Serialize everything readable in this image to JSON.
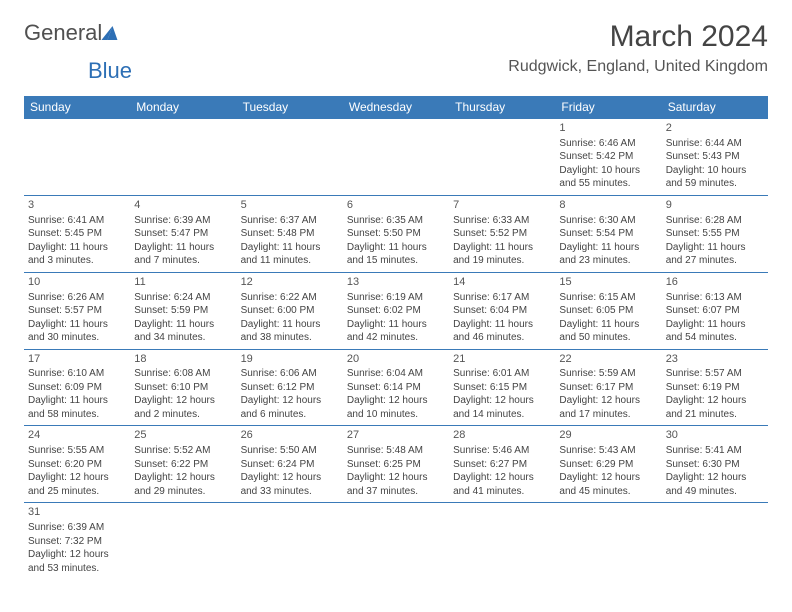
{
  "logo": {
    "text1": "General",
    "text2": "Blue"
  },
  "title": "March 2024",
  "location": "Rudgwick, England, United Kingdom",
  "colors": {
    "header_bg": "#3a7ab8",
    "header_text": "#ffffff",
    "border": "#3a7ab8",
    "logo_gray": "#505050",
    "logo_blue": "#2d6fb5"
  },
  "weekdays": [
    "Sunday",
    "Monday",
    "Tuesday",
    "Wednesday",
    "Thursday",
    "Friday",
    "Saturday"
  ],
  "weeks": [
    [
      null,
      null,
      null,
      null,
      null,
      {
        "day": "1",
        "sunrise": "Sunrise: 6:46 AM",
        "sunset": "Sunset: 5:42 PM",
        "daylight1": "Daylight: 10 hours",
        "daylight2": "and 55 minutes."
      },
      {
        "day": "2",
        "sunrise": "Sunrise: 6:44 AM",
        "sunset": "Sunset: 5:43 PM",
        "daylight1": "Daylight: 10 hours",
        "daylight2": "and 59 minutes."
      }
    ],
    [
      {
        "day": "3",
        "sunrise": "Sunrise: 6:41 AM",
        "sunset": "Sunset: 5:45 PM",
        "daylight1": "Daylight: 11 hours",
        "daylight2": "and 3 minutes."
      },
      {
        "day": "4",
        "sunrise": "Sunrise: 6:39 AM",
        "sunset": "Sunset: 5:47 PM",
        "daylight1": "Daylight: 11 hours",
        "daylight2": "and 7 minutes."
      },
      {
        "day": "5",
        "sunrise": "Sunrise: 6:37 AM",
        "sunset": "Sunset: 5:48 PM",
        "daylight1": "Daylight: 11 hours",
        "daylight2": "and 11 minutes."
      },
      {
        "day": "6",
        "sunrise": "Sunrise: 6:35 AM",
        "sunset": "Sunset: 5:50 PM",
        "daylight1": "Daylight: 11 hours",
        "daylight2": "and 15 minutes."
      },
      {
        "day": "7",
        "sunrise": "Sunrise: 6:33 AM",
        "sunset": "Sunset: 5:52 PM",
        "daylight1": "Daylight: 11 hours",
        "daylight2": "and 19 minutes."
      },
      {
        "day": "8",
        "sunrise": "Sunrise: 6:30 AM",
        "sunset": "Sunset: 5:54 PM",
        "daylight1": "Daylight: 11 hours",
        "daylight2": "and 23 minutes."
      },
      {
        "day": "9",
        "sunrise": "Sunrise: 6:28 AM",
        "sunset": "Sunset: 5:55 PM",
        "daylight1": "Daylight: 11 hours",
        "daylight2": "and 27 minutes."
      }
    ],
    [
      {
        "day": "10",
        "sunrise": "Sunrise: 6:26 AM",
        "sunset": "Sunset: 5:57 PM",
        "daylight1": "Daylight: 11 hours",
        "daylight2": "and 30 minutes."
      },
      {
        "day": "11",
        "sunrise": "Sunrise: 6:24 AM",
        "sunset": "Sunset: 5:59 PM",
        "daylight1": "Daylight: 11 hours",
        "daylight2": "and 34 minutes."
      },
      {
        "day": "12",
        "sunrise": "Sunrise: 6:22 AM",
        "sunset": "Sunset: 6:00 PM",
        "daylight1": "Daylight: 11 hours",
        "daylight2": "and 38 minutes."
      },
      {
        "day": "13",
        "sunrise": "Sunrise: 6:19 AM",
        "sunset": "Sunset: 6:02 PM",
        "daylight1": "Daylight: 11 hours",
        "daylight2": "and 42 minutes."
      },
      {
        "day": "14",
        "sunrise": "Sunrise: 6:17 AM",
        "sunset": "Sunset: 6:04 PM",
        "daylight1": "Daylight: 11 hours",
        "daylight2": "and 46 minutes."
      },
      {
        "day": "15",
        "sunrise": "Sunrise: 6:15 AM",
        "sunset": "Sunset: 6:05 PM",
        "daylight1": "Daylight: 11 hours",
        "daylight2": "and 50 minutes."
      },
      {
        "day": "16",
        "sunrise": "Sunrise: 6:13 AM",
        "sunset": "Sunset: 6:07 PM",
        "daylight1": "Daylight: 11 hours",
        "daylight2": "and 54 minutes."
      }
    ],
    [
      {
        "day": "17",
        "sunrise": "Sunrise: 6:10 AM",
        "sunset": "Sunset: 6:09 PM",
        "daylight1": "Daylight: 11 hours",
        "daylight2": "and 58 minutes."
      },
      {
        "day": "18",
        "sunrise": "Sunrise: 6:08 AM",
        "sunset": "Sunset: 6:10 PM",
        "daylight1": "Daylight: 12 hours",
        "daylight2": "and 2 minutes."
      },
      {
        "day": "19",
        "sunrise": "Sunrise: 6:06 AM",
        "sunset": "Sunset: 6:12 PM",
        "daylight1": "Daylight: 12 hours",
        "daylight2": "and 6 minutes."
      },
      {
        "day": "20",
        "sunrise": "Sunrise: 6:04 AM",
        "sunset": "Sunset: 6:14 PM",
        "daylight1": "Daylight: 12 hours",
        "daylight2": "and 10 minutes."
      },
      {
        "day": "21",
        "sunrise": "Sunrise: 6:01 AM",
        "sunset": "Sunset: 6:15 PM",
        "daylight1": "Daylight: 12 hours",
        "daylight2": "and 14 minutes."
      },
      {
        "day": "22",
        "sunrise": "Sunrise: 5:59 AM",
        "sunset": "Sunset: 6:17 PM",
        "daylight1": "Daylight: 12 hours",
        "daylight2": "and 17 minutes."
      },
      {
        "day": "23",
        "sunrise": "Sunrise: 5:57 AM",
        "sunset": "Sunset: 6:19 PM",
        "daylight1": "Daylight: 12 hours",
        "daylight2": "and 21 minutes."
      }
    ],
    [
      {
        "day": "24",
        "sunrise": "Sunrise: 5:55 AM",
        "sunset": "Sunset: 6:20 PM",
        "daylight1": "Daylight: 12 hours",
        "daylight2": "and 25 minutes."
      },
      {
        "day": "25",
        "sunrise": "Sunrise: 5:52 AM",
        "sunset": "Sunset: 6:22 PM",
        "daylight1": "Daylight: 12 hours",
        "daylight2": "and 29 minutes."
      },
      {
        "day": "26",
        "sunrise": "Sunrise: 5:50 AM",
        "sunset": "Sunset: 6:24 PM",
        "daylight1": "Daylight: 12 hours",
        "daylight2": "and 33 minutes."
      },
      {
        "day": "27",
        "sunrise": "Sunrise: 5:48 AM",
        "sunset": "Sunset: 6:25 PM",
        "daylight1": "Daylight: 12 hours",
        "daylight2": "and 37 minutes."
      },
      {
        "day": "28",
        "sunrise": "Sunrise: 5:46 AM",
        "sunset": "Sunset: 6:27 PM",
        "daylight1": "Daylight: 12 hours",
        "daylight2": "and 41 minutes."
      },
      {
        "day": "29",
        "sunrise": "Sunrise: 5:43 AM",
        "sunset": "Sunset: 6:29 PM",
        "daylight1": "Daylight: 12 hours",
        "daylight2": "and 45 minutes."
      },
      {
        "day": "30",
        "sunrise": "Sunrise: 5:41 AM",
        "sunset": "Sunset: 6:30 PM",
        "daylight1": "Daylight: 12 hours",
        "daylight2": "and 49 minutes."
      }
    ],
    [
      {
        "day": "31",
        "sunrise": "Sunrise: 6:39 AM",
        "sunset": "Sunset: 7:32 PM",
        "daylight1": "Daylight: 12 hours",
        "daylight2": "and 53 minutes."
      },
      null,
      null,
      null,
      null,
      null,
      null
    ]
  ]
}
